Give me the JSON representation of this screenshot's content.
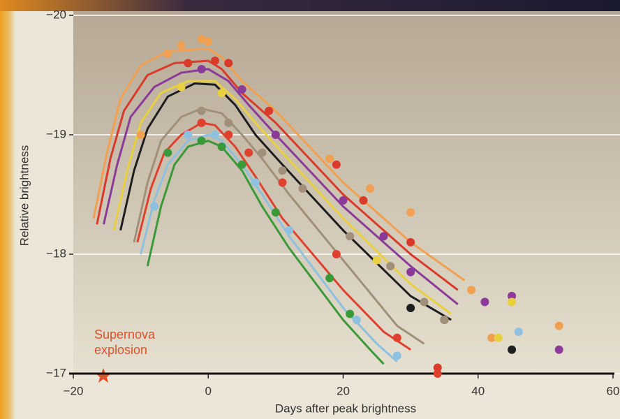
{
  "chart_data": {
    "type": "line",
    "x_label": "Days after peak brightness",
    "y_label": "Relative brightness",
    "annotation": "Supernova explosion",
    "xlim": [
      -20,
      60
    ],
    "xticks": [
      {
        "value": -20,
        "label": "−20"
      },
      0,
      20,
      40,
      60
    ],
    "ylim": [
      -17,
      -20
    ],
    "yticks": [
      {
        "value": -20,
        "label": "−20"
      },
      {
        "value": -19,
        "label": "−19"
      },
      {
        "value": -18,
        "label": "−18"
      },
      {
        "value": -17,
        "label": "−17"
      }
    ],
    "grid": true,
    "series": [
      {
        "color": "#f0a050",
        "x": [
          -17,
          -15,
          -13,
          -10,
          -6,
          0,
          2,
          5,
          10,
          20,
          30,
          38
        ],
        "values": [
          -18.3,
          -18.85,
          -19.3,
          -19.58,
          -19.7,
          -19.72,
          -19.65,
          -19.45,
          -19.2,
          -18.6,
          -18.1,
          -17.78
        ],
        "dots": {
          "x": [
            -10,
            -6,
            -4,
            -1,
            0,
            18,
            24,
            30,
            39,
            42,
            52
          ],
          "values": [
            -19.0,
            -19.68,
            -19.75,
            -19.8,
            -19.78,
            -18.8,
            -18.55,
            -18.35,
            -17.7,
            -17.3,
            -17.4
          ]
        }
      },
      {
        "color": "#d93a2a",
        "x": [
          -16.5,
          -14.5,
          -12.5,
          -9,
          -5,
          0,
          2,
          5,
          10,
          20,
          30,
          37
        ],
        "values": [
          -18.25,
          -18.8,
          -19.2,
          -19.5,
          -19.6,
          -19.62,
          -19.55,
          -19.35,
          -19.1,
          -18.5,
          -18.0,
          -17.7
        ],
        "dots": {
          "x": [
            -3,
            1,
            3,
            9,
            19,
            23,
            30,
            34
          ],
          "values": [
            -19.6,
            -19.62,
            -19.6,
            -19.2,
            -18.75,
            -18.45,
            -18.1,
            -17.05
          ]
        }
      },
      {
        "color": "#8b3a9a",
        "x": [
          -15.5,
          -13.5,
          -11.5,
          -8,
          -4,
          0,
          3,
          6,
          10,
          20,
          30,
          37
        ],
        "values": [
          -18.25,
          -18.75,
          -19.15,
          -19.4,
          -19.52,
          -19.55,
          -19.45,
          -19.25,
          -19.0,
          -18.4,
          -17.9,
          -17.58
        ],
        "dots": {
          "x": [
            -1,
            5,
            10,
            20,
            26,
            30,
            41,
            45,
            52
          ],
          "values": [
            -19.55,
            -19.38,
            -19.0,
            -18.45,
            -18.15,
            -17.85,
            -17.6,
            -17.65,
            -17.2
          ]
        }
      },
      {
        "color": "#e8d040",
        "x": [
          -14,
          -12,
          -10,
          -7,
          -3,
          1,
          4,
          7,
          11,
          20,
          30,
          36
        ],
        "values": [
          -18.2,
          -18.7,
          -19.1,
          -19.35,
          -19.45,
          -19.45,
          -19.3,
          -19.1,
          -18.85,
          -18.3,
          -17.75,
          -17.5
        ],
        "dots": {
          "x": [
            -4,
            2,
            25,
            43,
            45
          ],
          "values": [
            -19.4,
            -19.35,
            -17.95,
            -17.3,
            -17.6
          ]
        }
      },
      {
        "color": "#1e1e1e",
        "x": [
          -13,
          -11,
          -9,
          -6,
          -2,
          1,
          4,
          7,
          11,
          20,
          30,
          36
        ],
        "values": [
          -18.2,
          -18.7,
          -19.05,
          -19.32,
          -19.43,
          -19.42,
          -19.25,
          -19.0,
          -18.75,
          -18.2,
          -17.65,
          -17.45
        ],
        "dots": {
          "x": [
            30,
            35,
            45
          ],
          "values": [
            -17.55,
            -17.45,
            -17.2
          ]
        }
      },
      {
        "color": "#a0907a",
        "x": [
          -11,
          -9,
          -7,
          -4,
          -1,
          2,
          5,
          8,
          12,
          20,
          28,
          32
        ],
        "values": [
          -18.1,
          -18.6,
          -18.95,
          -19.15,
          -19.22,
          -19.18,
          -19.0,
          -18.8,
          -18.5,
          -17.95,
          -17.4,
          -17.25
        ],
        "dots": {
          "x": [
            -1,
            3,
            8,
            11,
            14,
            21,
            27,
            32,
            35
          ],
          "values": [
            -19.2,
            -19.1,
            -18.85,
            -18.7,
            -18.55,
            -18.15,
            -17.9,
            -17.6,
            -17.45
          ]
        }
      },
      {
        "color": "#e0402e",
        "x": [
          -10.5,
          -8.5,
          -6.5,
          -4,
          -1,
          1,
          4,
          7,
          11,
          20,
          26,
          30
        ],
        "values": [
          -18.1,
          -18.55,
          -18.85,
          -19.0,
          -19.1,
          -19.08,
          -18.9,
          -18.65,
          -18.3,
          -17.7,
          -17.35,
          -17.2
        ],
        "dots": {
          "x": [
            -1,
            3,
            6,
            11,
            19,
            28,
            34
          ],
          "values": [
            -19.1,
            -19.0,
            -18.85,
            -18.6,
            -18.0,
            -17.3,
            -17.0
          ]
        }
      },
      {
        "color": "#8ec0e0",
        "x": [
          -10,
          -8,
          -6,
          -3,
          0,
          2,
          5,
          8,
          12,
          20,
          25,
          28
        ],
        "values": [
          -18.0,
          -18.45,
          -18.75,
          -18.95,
          -19.0,
          -18.95,
          -18.75,
          -18.5,
          -18.15,
          -17.55,
          -17.25,
          -17.1
        ],
        "dots": {
          "x": [
            -8,
            -3,
            1,
            7,
            12,
            22,
            28,
            46
          ],
          "values": [
            -18.4,
            -19.0,
            -19.0,
            -18.6,
            -18.2,
            -17.45,
            -17.15,
            -17.35
          ]
        }
      },
      {
        "color": "#3a9a3a",
        "x": [
          -9,
          -7,
          -5,
          -3,
          0,
          2,
          5,
          8,
          12,
          20,
          24,
          26
        ],
        "values": [
          -17.9,
          -18.4,
          -18.75,
          -18.9,
          -18.95,
          -18.9,
          -18.7,
          -18.4,
          -18.05,
          -17.45,
          -17.2,
          -17.08
        ],
        "dots": {
          "x": [
            -6,
            -1,
            2,
            5,
            10,
            18,
            21
          ],
          "values": [
            -18.85,
            -18.95,
            -18.9,
            -18.75,
            -18.35,
            -17.8,
            -17.5
          ]
        }
      }
    ]
  }
}
